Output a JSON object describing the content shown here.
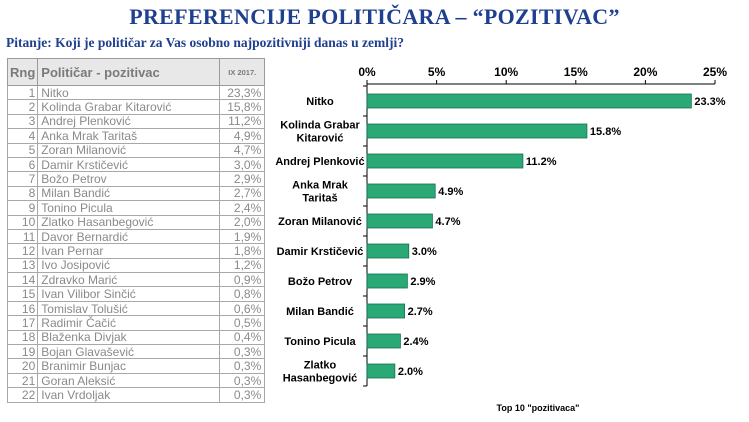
{
  "header": {
    "title": "PREFERENCIJE POLITIČARA – “POZITIVAC”",
    "question": "Pitanje: Koji je političar za Vas osobno najpozitivniji danas u zemlji?"
  },
  "table": {
    "headers": [
      "Rng",
      "Političar - pozitivac",
      "IX 2017."
    ],
    "rows": [
      {
        "rank": "1",
        "name": "Nitko",
        "value": "23,3%"
      },
      {
        "rank": "2",
        "name": "Kolinda Grabar Kitarović",
        "value": "15,8%"
      },
      {
        "rank": "3",
        "name": "Andrej Plenković",
        "value": "11,2%"
      },
      {
        "rank": "4",
        "name": "Anka Mrak Taritaš",
        "value": "4,9%"
      },
      {
        "rank": "5",
        "name": "Zoran Milanović",
        "value": "4,7%"
      },
      {
        "rank": "6",
        "name": "Damir Krstičević",
        "value": "3,0%"
      },
      {
        "rank": "7",
        "name": "Božo Petrov",
        "value": "2,9%"
      },
      {
        "rank": "8",
        "name": "Milan Bandić",
        "value": "2,7%"
      },
      {
        "rank": "9",
        "name": "Tonino Picula",
        "value": "2,4%"
      },
      {
        "rank": "10",
        "name": "Zlatko Hasanbegović",
        "value": "2,0%"
      },
      {
        "rank": "11",
        "name": "Davor Bernardić",
        "value": "1,9%"
      },
      {
        "rank": "12",
        "name": "Ivan Pernar",
        "value": "1,8%"
      },
      {
        "rank": "13",
        "name": "Ivo Josipović",
        "value": "1,2%"
      },
      {
        "rank": "14",
        "name": "Zdravko Marić",
        "value": "0,9%"
      },
      {
        "rank": "15",
        "name": "Ivan Vilibor Sinčić",
        "value": "0,8%"
      },
      {
        "rank": "16",
        "name": "Tomislav Tolušić",
        "value": "0,6%"
      },
      {
        "rank": "17",
        "name": "Radimir Čačić",
        "value": "0,5%"
      },
      {
        "rank": "18",
        "name": "Blaženka Divjak",
        "value": "0,4%"
      },
      {
        "rank": "19",
        "name": "Bojan Glavašević",
        "value": "0,3%"
      },
      {
        "rank": "20",
        "name": "Branimir Bunjac",
        "value": "0,3%"
      },
      {
        "rank": "21",
        "name": "Goran Aleksić",
        "value": "0,3%"
      },
      {
        "rank": "22",
        "name": "Ivan Vrdoljak",
        "value": "0,3%"
      }
    ]
  },
  "chart_data": {
    "type": "bar",
    "orientation": "horizontal",
    "title": "Top 10 \"pozitivaca\"",
    "categories": [
      [
        "Nitko"
      ],
      [
        "Kolinda Grabar",
        "Kitarović"
      ],
      [
        "Andrej Plenković"
      ],
      [
        "Anka Mrak",
        "Taritaš"
      ],
      [
        "Zoran Milanović"
      ],
      [
        "Damir Krstičević"
      ],
      [
        "Božo Petrov"
      ],
      [
        "Milan Bandić"
      ],
      [
        "Tonino Picula"
      ],
      [
        "Zlatko",
        "Hasanbegović"
      ]
    ],
    "values": [
      23.3,
      15.8,
      11.2,
      4.9,
      4.7,
      3.0,
      2.9,
      2.7,
      2.4,
      2.0
    ],
    "value_labels": [
      "23.3%",
      "15.8%",
      "11.2%",
      "4.9%",
      "4.7%",
      "3.0%",
      "2.9%",
      "2.7%",
      "2.4%",
      "2.0%"
    ],
    "xlim": [
      0,
      25
    ],
    "xticks": [
      0,
      5,
      10,
      15,
      20,
      25
    ],
    "xtick_labels": [
      "0%",
      "5%",
      "10%",
      "15%",
      "20%",
      "25%"
    ],
    "axis_position": "top",
    "grid": false,
    "bar_color": "#2aa876",
    "bar_edge_color": "#15724d"
  }
}
